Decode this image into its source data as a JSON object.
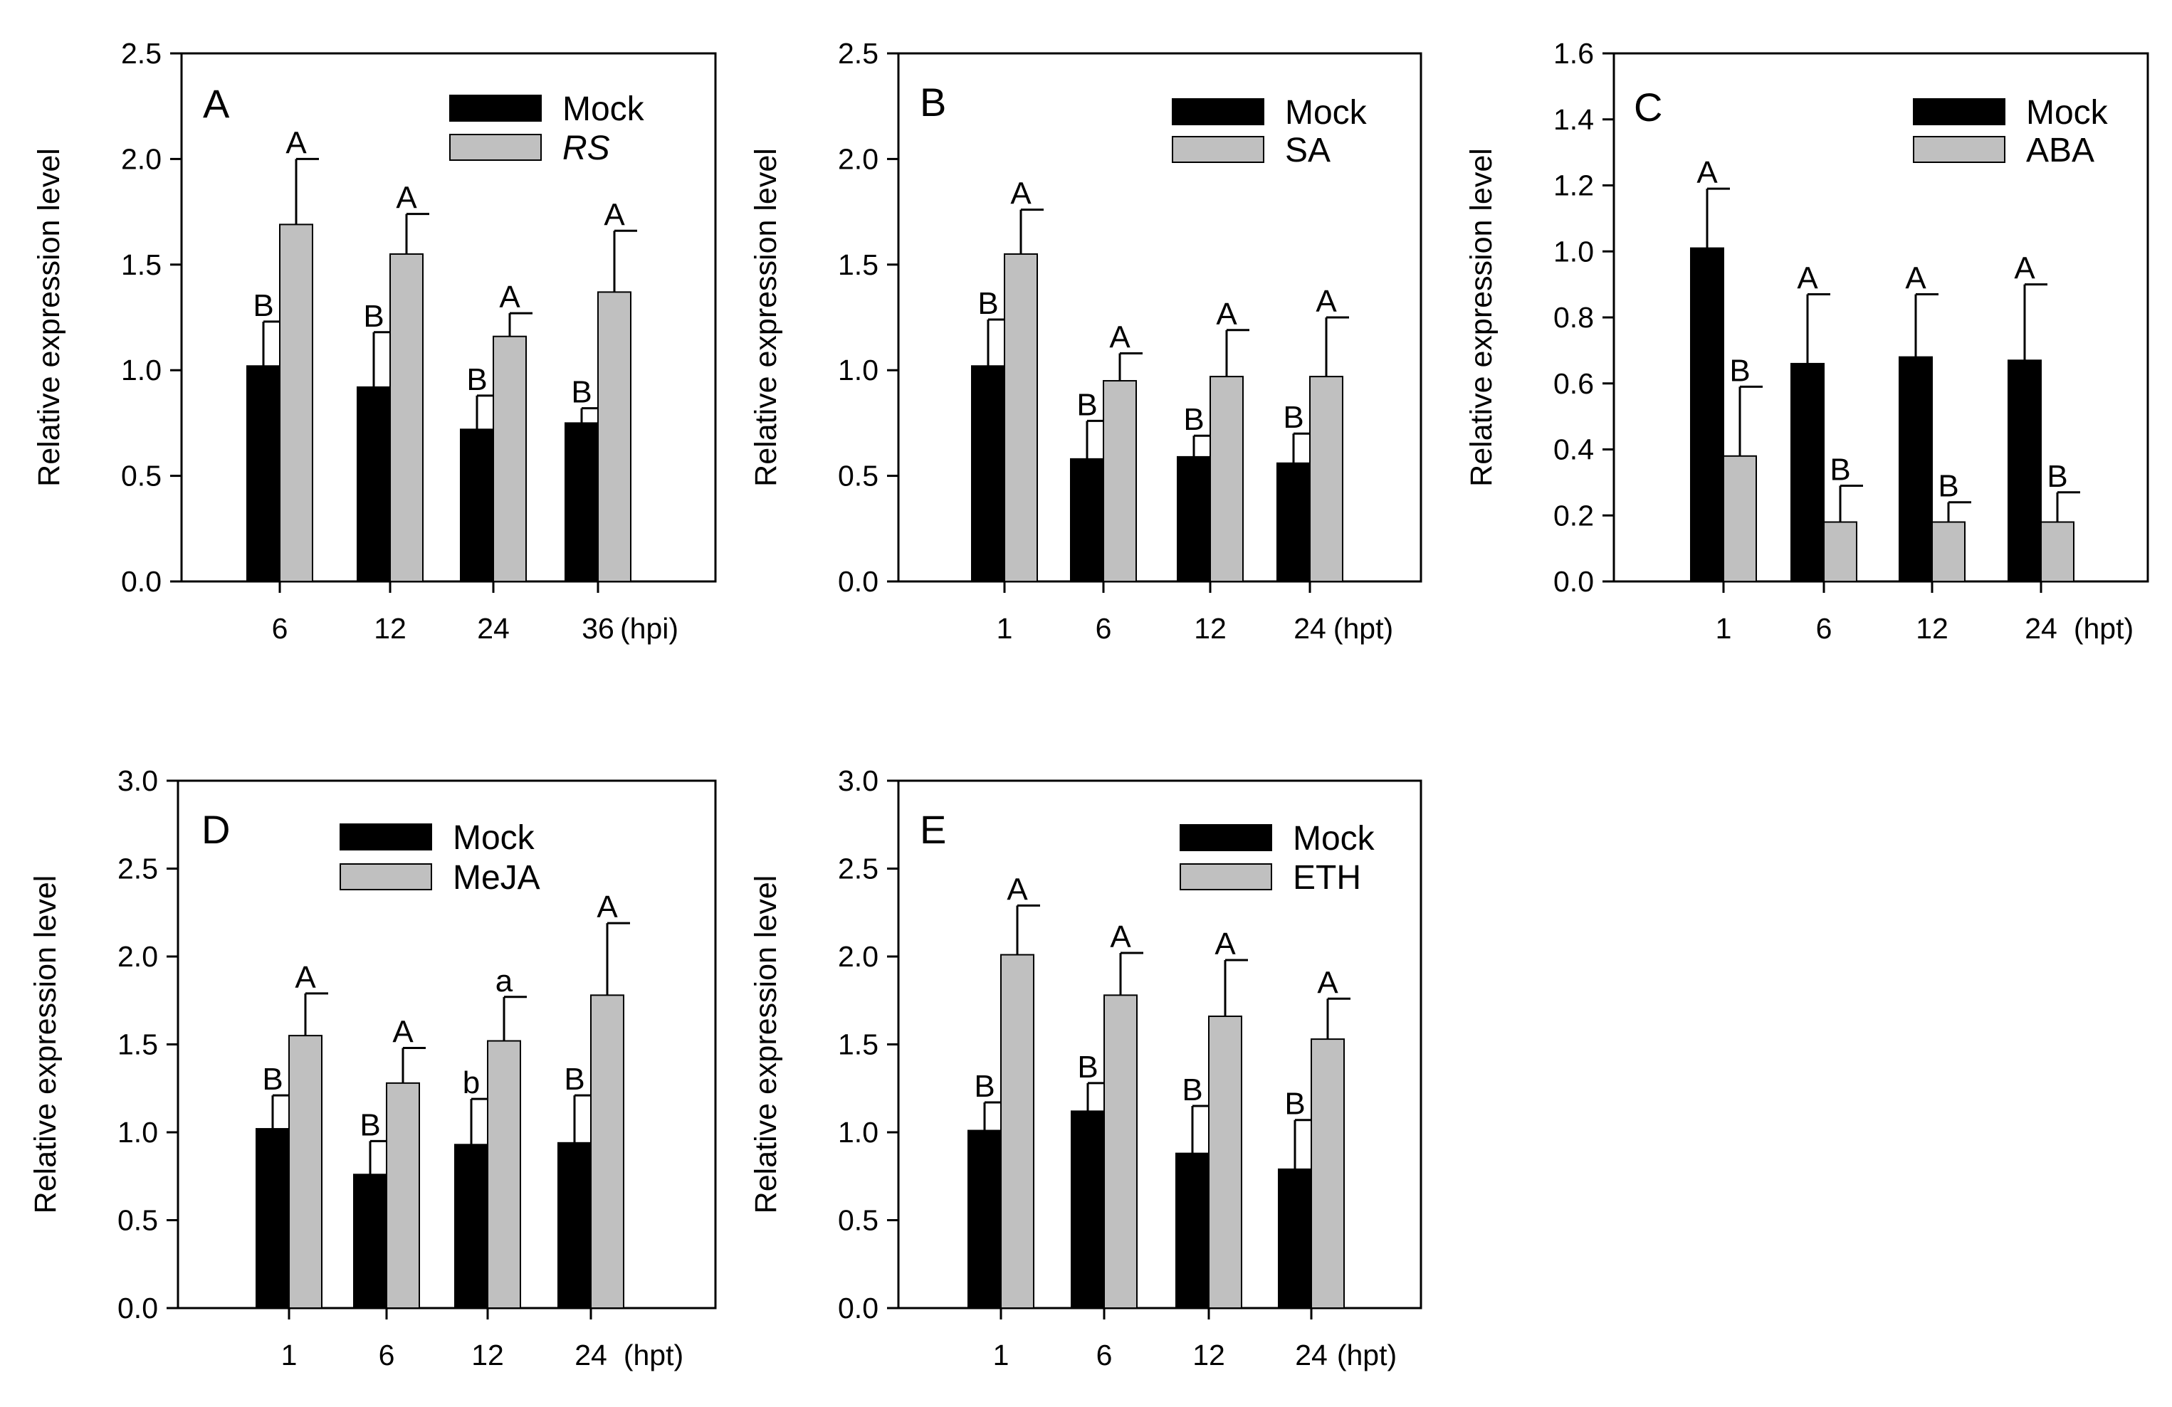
{
  "chart_data": [
    {
      "type": "bar",
      "panel_label": "A",
      "categories": [
        "6",
        "12",
        "24",
        "36"
      ],
      "x_unit_label": "(hpi)",
      "ylabel": "Relative expression level",
      "ylim": [
        0,
        2.5
      ],
      "yticks": [
        0.0,
        0.5,
        1.0,
        1.5,
        2.0,
        2.5
      ],
      "ytick_labels": [
        "0.0",
        "0.5",
        "1.0",
        "1.5",
        "2.0",
        "2.5"
      ],
      "legend_position": "top-right",
      "series": [
        {
          "name": "Mock",
          "color": "#000000",
          "values": [
            1.02,
            0.92,
            0.72,
            0.75
          ],
          "errors": [
            0.21,
            0.26,
            0.16,
            0.07
          ],
          "labels": [
            "B",
            "B",
            "B",
            "B"
          ]
        },
        {
          "name": "RS",
          "name_italic": true,
          "color": "#c0c0c0",
          "values": [
            1.69,
            1.55,
            1.16,
            1.37
          ],
          "errors": [
            0.31,
            0.19,
            0.11,
            0.29
          ],
          "labels": [
            "A",
            "A",
            "A",
            "A"
          ]
        }
      ]
    },
    {
      "type": "bar",
      "panel_label": "B",
      "categories": [
        "1",
        "6",
        "12",
        "24"
      ],
      "x_unit_label": "(hpt)",
      "ylabel": "Relative expression level",
      "ylim": [
        0,
        2.5
      ],
      "yticks": [
        0.0,
        0.5,
        1.0,
        1.5,
        2.0,
        2.5
      ],
      "ytick_labels": [
        "0.0",
        "0.5",
        "1.0",
        "1.5",
        "2.0",
        "2.5"
      ],
      "legend_position": "top-right",
      "series": [
        {
          "name": "Mock",
          "color": "#000000",
          "values": [
            1.02,
            0.58,
            0.59,
            0.56
          ],
          "errors": [
            0.22,
            0.18,
            0.1,
            0.14
          ],
          "labels": [
            "B",
            "B",
            "B",
            "B"
          ]
        },
        {
          "name": "SA",
          "color": "#c0c0c0",
          "values": [
            1.55,
            0.95,
            0.97,
            0.97
          ],
          "errors": [
            0.21,
            0.13,
            0.22,
            0.28
          ],
          "labels": [
            "A",
            "A",
            "A",
            "A"
          ]
        }
      ]
    },
    {
      "type": "bar",
      "panel_label": "C",
      "categories": [
        "1",
        "6",
        "12",
        "24"
      ],
      "x_unit_label": "(hpt)",
      "ylabel": "Relative expression level",
      "ylim": [
        0,
        1.6
      ],
      "yticks": [
        0.0,
        0.2,
        0.4,
        0.6,
        0.8,
        1.0,
        1.2,
        1.4,
        1.6
      ],
      "ytick_labels": [
        "0.0",
        "0.2",
        "0.4",
        "0.6",
        "0.8",
        "1.0",
        "1.2",
        "1.4",
        "1.6"
      ],
      "legend_position": "top-right",
      "series": [
        {
          "name": "Mock",
          "color": "#000000",
          "values": [
            1.01,
            0.66,
            0.68,
            0.67
          ],
          "errors": [
            0.18,
            0.21,
            0.19,
            0.23
          ],
          "labels": [
            "A",
            "A",
            "A",
            "A"
          ]
        },
        {
          "name": "ABA",
          "color": "#c0c0c0",
          "values": [
            0.38,
            0.18,
            0.18,
            0.18
          ],
          "errors": [
            0.21,
            0.11,
            0.06,
            0.09
          ],
          "labels": [
            "B",
            "B",
            "B",
            "B"
          ]
        }
      ]
    },
    {
      "type": "bar",
      "panel_label": "D",
      "categories": [
        "1",
        "6",
        "12",
        "24"
      ],
      "x_unit_label": "(hpt)",
      "ylabel": "Relative expression level",
      "ylim": [
        0,
        3.0
      ],
      "yticks": [
        0.0,
        0.5,
        1.0,
        1.5,
        2.0,
        2.5,
        3.0
      ],
      "ytick_labels": [
        "0.0",
        "0.5",
        "1.0",
        "1.5",
        "2.0",
        "2.5",
        "3.0"
      ],
      "legend_position": "top-center",
      "series": [
        {
          "name": "Mock",
          "color": "#000000",
          "values": [
            1.02,
            0.76,
            0.93,
            0.94
          ],
          "errors": [
            0.19,
            0.19,
            0.26,
            0.27
          ],
          "labels": [
            "B",
            "B",
            "b",
            "B"
          ]
        },
        {
          "name": "MeJA",
          "color": "#c0c0c0",
          "values": [
            1.55,
            1.28,
            1.52,
            1.78
          ],
          "errors": [
            0.24,
            0.2,
            0.25,
            0.41
          ],
          "labels": [
            "A",
            "A",
            "a",
            "A"
          ]
        }
      ]
    },
    {
      "type": "bar",
      "panel_label": "E",
      "categories": [
        "1",
        "6",
        "12",
        "24"
      ],
      "x_unit_label": "(hpt)",
      "ylabel": "Relative expression level",
      "ylim": [
        0,
        3.0
      ],
      "yticks": [
        0.0,
        0.5,
        1.0,
        1.5,
        2.0,
        2.5,
        3.0
      ],
      "ytick_labels": [
        "0.0",
        "0.5",
        "1.0",
        "1.5",
        "2.0",
        "2.5",
        "3.0"
      ],
      "legend_position": "top-right",
      "series": [
        {
          "name": "Mock",
          "color": "#000000",
          "values": [
            1.01,
            1.12,
            0.88,
            0.79
          ],
          "errors": [
            0.16,
            0.16,
            0.27,
            0.28
          ],
          "labels": [
            "B",
            "B",
            "B",
            "B"
          ]
        },
        {
          "name": "ETH",
          "color": "#c0c0c0",
          "values": [
            2.01,
            1.78,
            1.66,
            1.53
          ],
          "errors": [
            0.28,
            0.24,
            0.32,
            0.23
          ],
          "labels": [
            "A",
            "A",
            "A",
            "A"
          ]
        }
      ]
    }
  ]
}
